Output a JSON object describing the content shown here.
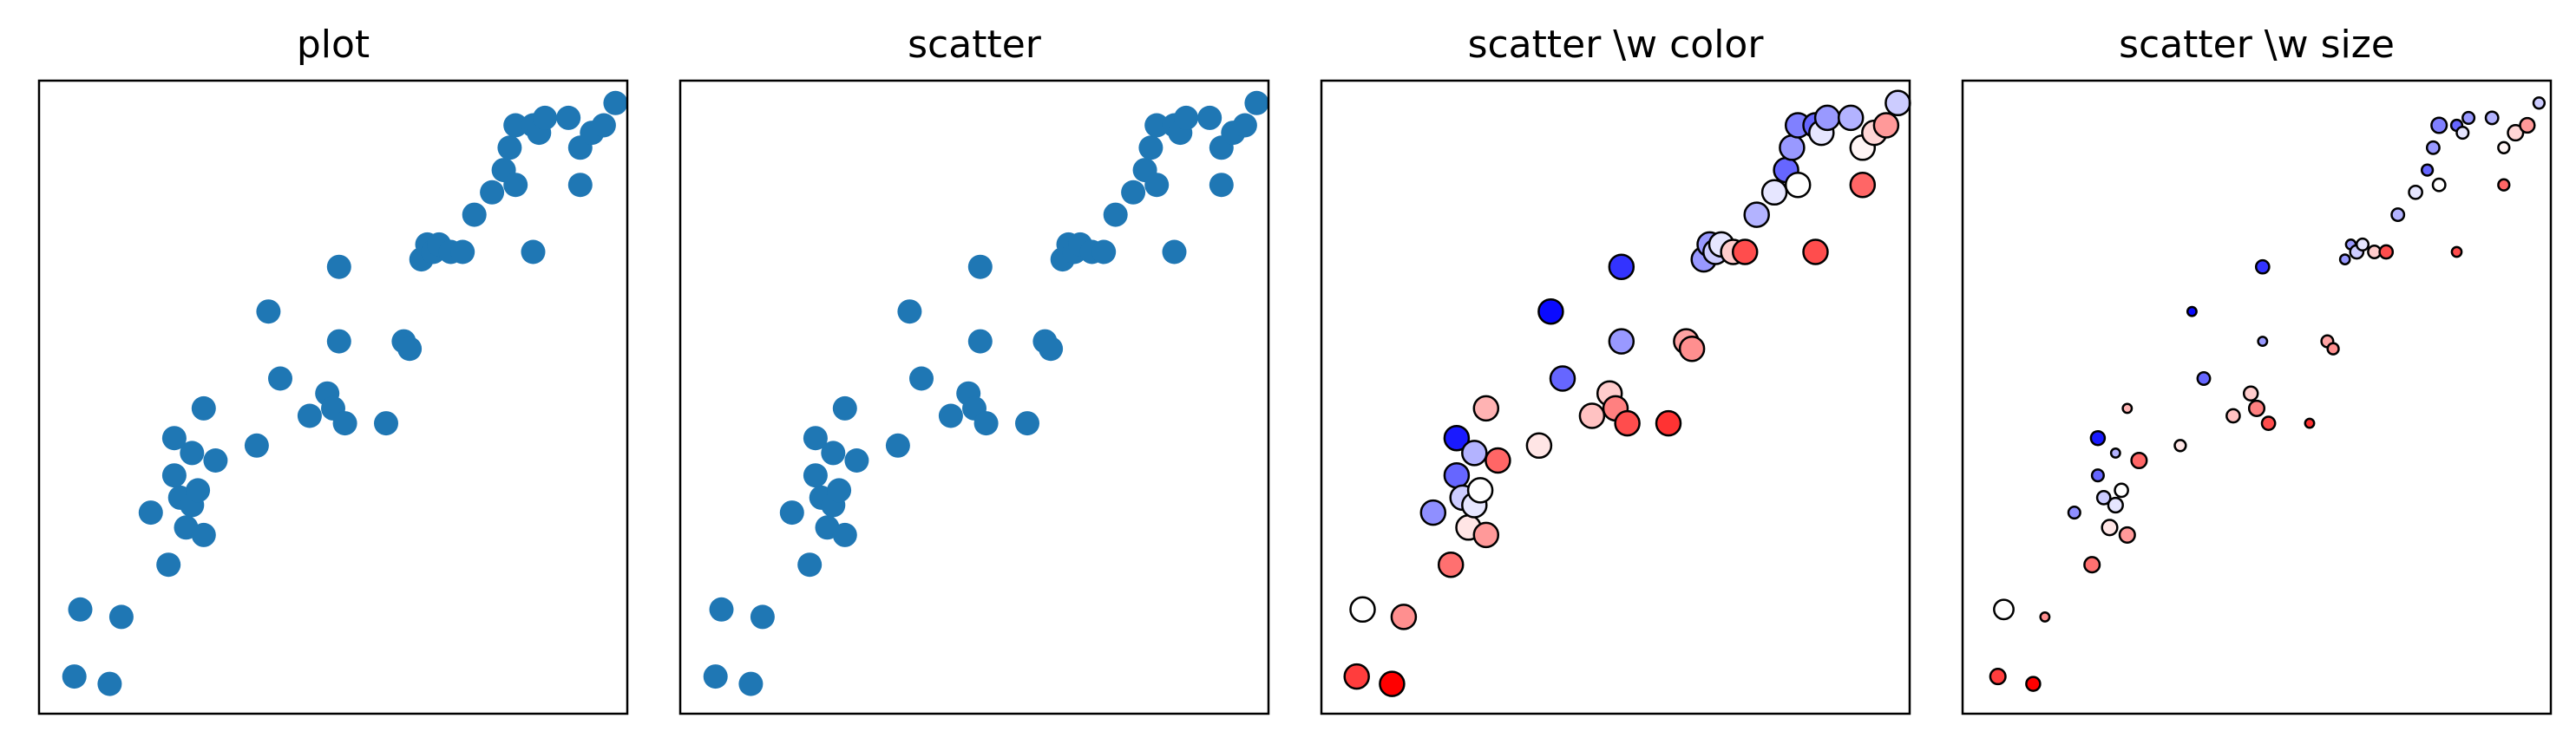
{
  "chart_data": [
    {
      "type": "scatter",
      "title": "plot",
      "xlabel": "",
      "ylabel": "",
      "xlim": [
        -0.02,
        0.98
      ],
      "ylim": [
        0.31,
        1.16
      ],
      "grid": false,
      "marker_color": "#1f77b4",
      "points": [
        [
          0.04,
          0.36
        ],
        [
          0.05,
          0.45
        ],
        [
          0.1,
          0.35
        ],
        [
          0.12,
          0.44
        ],
        [
          0.17,
          0.58
        ],
        [
          0.2,
          0.51
        ],
        [
          0.21,
          0.68
        ],
        [
          0.21,
          0.63
        ],
        [
          0.22,
          0.6
        ],
        [
          0.23,
          0.56
        ],
        [
          0.24,
          0.59
        ],
        [
          0.24,
          0.66
        ],
        [
          0.25,
          0.61
        ],
        [
          0.26,
          0.55
        ],
        [
          0.26,
          0.72
        ],
        [
          0.28,
          0.65
        ],
        [
          0.35,
          0.67
        ],
        [
          0.37,
          0.85
        ],
        [
          0.39,
          0.76
        ],
        [
          0.44,
          0.71
        ],
        [
          0.47,
          0.74
        ],
        [
          0.48,
          0.72
        ],
        [
          0.49,
          0.81
        ],
        [
          0.49,
          0.91
        ],
        [
          0.5,
          0.7
        ],
        [
          0.57,
          0.7
        ],
        [
          0.6,
          0.81
        ],
        [
          0.61,
          0.8
        ],
        [
          0.63,
          0.92
        ],
        [
          0.64,
          0.94
        ],
        [
          0.65,
          0.93
        ],
        [
          0.66,
          0.94
        ],
        [
          0.68,
          0.93
        ],
        [
          0.7,
          0.93
        ],
        [
          0.72,
          0.98
        ],
        [
          0.75,
          1.01
        ],
        [
          0.77,
          1.04
        ],
        [
          0.78,
          1.07
        ],
        [
          0.79,
          1.02
        ],
        [
          0.79,
          1.1
        ],
        [
          0.82,
          1.1
        ],
        [
          0.82,
          0.93
        ],
        [
          0.83,
          1.09
        ],
        [
          0.84,
          1.11
        ],
        [
          0.88,
          1.11
        ],
        [
          0.9,
          1.07
        ],
        [
          0.9,
          1.02
        ],
        [
          0.92,
          1.09
        ],
        [
          0.94,
          1.1
        ],
        [
          0.96,
          1.13
        ]
      ]
    },
    {
      "type": "scatter",
      "title": "scatter",
      "xlabel": "",
      "ylabel": "",
      "xlim": [
        -0.02,
        0.98
      ],
      "ylim": [
        0.31,
        1.16
      ],
      "grid": false,
      "marker_color": "#1f77b4",
      "points": [
        [
          0.04,
          0.36
        ],
        [
          0.05,
          0.45
        ],
        [
          0.1,
          0.35
        ],
        [
          0.12,
          0.44
        ],
        [
          0.17,
          0.58
        ],
        [
          0.2,
          0.51
        ],
        [
          0.21,
          0.68
        ],
        [
          0.21,
          0.63
        ],
        [
          0.22,
          0.6
        ],
        [
          0.23,
          0.56
        ],
        [
          0.24,
          0.59
        ],
        [
          0.24,
          0.66
        ],
        [
          0.25,
          0.61
        ],
        [
          0.26,
          0.55
        ],
        [
          0.26,
          0.72
        ],
        [
          0.28,
          0.65
        ],
        [
          0.35,
          0.67
        ],
        [
          0.37,
          0.85
        ],
        [
          0.39,
          0.76
        ],
        [
          0.44,
          0.71
        ],
        [
          0.47,
          0.74
        ],
        [
          0.48,
          0.72
        ],
        [
          0.49,
          0.81
        ],
        [
          0.49,
          0.91
        ],
        [
          0.5,
          0.7
        ],
        [
          0.57,
          0.7
        ],
        [
          0.6,
          0.81
        ],
        [
          0.61,
          0.8
        ],
        [
          0.63,
          0.92
        ],
        [
          0.64,
          0.94
        ],
        [
          0.65,
          0.93
        ],
        [
          0.66,
          0.94
        ],
        [
          0.68,
          0.93
        ],
        [
          0.7,
          0.93
        ],
        [
          0.72,
          0.98
        ],
        [
          0.75,
          1.01
        ],
        [
          0.77,
          1.04
        ],
        [
          0.78,
          1.07
        ],
        [
          0.79,
          1.02
        ],
        [
          0.79,
          1.1
        ],
        [
          0.82,
          1.1
        ],
        [
          0.82,
          0.93
        ],
        [
          0.83,
          1.09
        ],
        [
          0.84,
          1.11
        ],
        [
          0.88,
          1.11
        ],
        [
          0.9,
          1.07
        ],
        [
          0.9,
          1.02
        ],
        [
          0.92,
          1.09
        ],
        [
          0.94,
          1.1
        ],
        [
          0.96,
          1.13
        ]
      ]
    },
    {
      "type": "scatter",
      "title": "scatter \\w color",
      "xlabel": "",
      "ylabel": "",
      "xlim": [
        -0.02,
        0.98
      ],
      "ylim": [
        0.31,
        1.16
      ],
      "grid": false,
      "colormap": "bwr",
      "edgecolor": "#000000",
      "point_fields": [
        "x",
        "y",
        "color_value"
      ],
      "points": [
        [
          0.04,
          0.36,
          0.88
        ],
        [
          0.05,
          0.45,
          0.5
        ],
        [
          0.1,
          0.35,
          1.0
        ],
        [
          0.12,
          0.44,
          0.72
        ],
        [
          0.17,
          0.58,
          0.28
        ],
        [
          0.2,
          0.51,
          0.78
        ],
        [
          0.21,
          0.68,
          0.05
        ],
        [
          0.21,
          0.63,
          0.2
        ],
        [
          0.22,
          0.6,
          0.4
        ],
        [
          0.23,
          0.56,
          0.55
        ],
        [
          0.24,
          0.59,
          0.45
        ],
        [
          0.24,
          0.66,
          0.35
        ],
        [
          0.25,
          0.61,
          0.5
        ],
        [
          0.26,
          0.55,
          0.7
        ],
        [
          0.26,
          0.72,
          0.65
        ],
        [
          0.28,
          0.65,
          0.8
        ],
        [
          0.35,
          0.67,
          0.55
        ],
        [
          0.37,
          0.85,
          0.02
        ],
        [
          0.39,
          0.76,
          0.2
        ],
        [
          0.44,
          0.71,
          0.62
        ],
        [
          0.47,
          0.74,
          0.6
        ],
        [
          0.48,
          0.72,
          0.75
        ],
        [
          0.49,
          0.81,
          0.3
        ],
        [
          0.49,
          0.91,
          0.1
        ],
        [
          0.5,
          0.7,
          0.85
        ],
        [
          0.57,
          0.7,
          0.9
        ],
        [
          0.6,
          0.81,
          0.68
        ],
        [
          0.61,
          0.8,
          0.72
        ],
        [
          0.63,
          0.92,
          0.3
        ],
        [
          0.64,
          0.94,
          0.3
        ],
        [
          0.65,
          0.93,
          0.4
        ],
        [
          0.66,
          0.94,
          0.45
        ],
        [
          0.68,
          0.93,
          0.6
        ],
        [
          0.7,
          0.93,
          0.85
        ],
        [
          0.72,
          0.98,
          0.35
        ],
        [
          0.75,
          1.01,
          0.45
        ],
        [
          0.77,
          1.04,
          0.2
        ],
        [
          0.78,
          1.07,
          0.3
        ],
        [
          0.79,
          1.02,
          0.5
        ],
        [
          0.79,
          1.1,
          0.25
        ],
        [
          0.82,
          1.1,
          0.2
        ],
        [
          0.82,
          0.93,
          0.85
        ],
        [
          0.83,
          1.09,
          0.45
        ],
        [
          0.84,
          1.11,
          0.3
        ],
        [
          0.88,
          1.11,
          0.35
        ],
        [
          0.9,
          1.07,
          0.52
        ],
        [
          0.9,
          1.02,
          0.8
        ],
        [
          0.92,
          1.09,
          0.58
        ],
        [
          0.94,
          1.1,
          0.7
        ],
        [
          0.96,
          1.13,
          0.4
        ]
      ]
    },
    {
      "type": "scatter",
      "title": "scatter \\w size",
      "xlabel": "",
      "ylabel": "",
      "xlim": [
        -0.02,
        0.98
      ],
      "ylim": [
        0.31,
        1.16
      ],
      "grid": false,
      "colormap": "bwr",
      "edgecolor": "#000000",
      "point_fields": [
        "x",
        "y",
        "color_value",
        "size"
      ],
      "points": [
        [
          0.04,
          0.36,
          0.88,
          0.6
        ],
        [
          0.05,
          0.45,
          0.5,
          0.9
        ],
        [
          0.1,
          0.35,
          1.0,
          0.5
        ],
        [
          0.12,
          0.44,
          0.72,
          0.15
        ],
        [
          0.17,
          0.58,
          0.28,
          0.35
        ],
        [
          0.2,
          0.51,
          0.78,
          0.6
        ],
        [
          0.21,
          0.68,
          0.05,
          0.5
        ],
        [
          0.21,
          0.63,
          0.2,
          0.35
        ],
        [
          0.22,
          0.6,
          0.4,
          0.45
        ],
        [
          0.23,
          0.56,
          0.55,
          0.6
        ],
        [
          0.24,
          0.59,
          0.45,
          0.55
        ],
        [
          0.24,
          0.66,
          0.35,
          0.15
        ],
        [
          0.25,
          0.61,
          0.5,
          0.45
        ],
        [
          0.26,
          0.55,
          0.7,
          0.6
        ],
        [
          0.26,
          0.72,
          0.65,
          0.15
        ],
        [
          0.28,
          0.65,
          0.8,
          0.6
        ],
        [
          0.35,
          0.67,
          0.55,
          0.3
        ],
        [
          0.37,
          0.85,
          0.02,
          0.15
        ],
        [
          0.39,
          0.76,
          0.2,
          0.4
        ],
        [
          0.44,
          0.71,
          0.62,
          0.45
        ],
        [
          0.47,
          0.74,
          0.6,
          0.5
        ],
        [
          0.48,
          0.72,
          0.75,
          0.6
        ],
        [
          0.49,
          0.81,
          0.3,
          0.15
        ],
        [
          0.49,
          0.91,
          0.1,
          0.45
        ],
        [
          0.5,
          0.7,
          0.85,
          0.45
        ],
        [
          0.57,
          0.7,
          0.9,
          0.15
        ],
        [
          0.6,
          0.81,
          0.68,
          0.35
        ],
        [
          0.61,
          0.8,
          0.72,
          0.3
        ],
        [
          0.63,
          0.92,
          0.3,
          0.2
        ],
        [
          0.64,
          0.94,
          0.3,
          0.2
        ],
        [
          0.65,
          0.93,
          0.4,
          0.45
        ],
        [
          0.66,
          0.94,
          0.45,
          0.35
        ],
        [
          0.68,
          0.93,
          0.6,
          0.4
        ],
        [
          0.7,
          0.93,
          0.85,
          0.45
        ],
        [
          0.72,
          0.98,
          0.35,
          0.4
        ],
        [
          0.75,
          1.01,
          0.45,
          0.45
        ],
        [
          0.77,
          1.04,
          0.2,
          0.3
        ],
        [
          0.78,
          1.07,
          0.3,
          0.4
        ],
        [
          0.79,
          1.02,
          0.5,
          0.4
        ],
        [
          0.79,
          1.1,
          0.25,
          0.6
        ],
        [
          0.82,
          1.1,
          0.2,
          0.3
        ],
        [
          0.82,
          0.93,
          0.85,
          0.2
        ],
        [
          0.83,
          1.09,
          0.45,
          0.35
        ],
        [
          0.84,
          1.11,
          0.3,
          0.35
        ],
        [
          0.88,
          1.11,
          0.35,
          0.4
        ],
        [
          0.9,
          1.07,
          0.52,
          0.3
        ],
        [
          0.9,
          1.02,
          0.8,
          0.3
        ],
        [
          0.92,
          1.09,
          0.58,
          0.6
        ],
        [
          0.94,
          1.1,
          0.7,
          0.55
        ],
        [
          0.96,
          1.13,
          0.4,
          0.3
        ]
      ]
    }
  ]
}
